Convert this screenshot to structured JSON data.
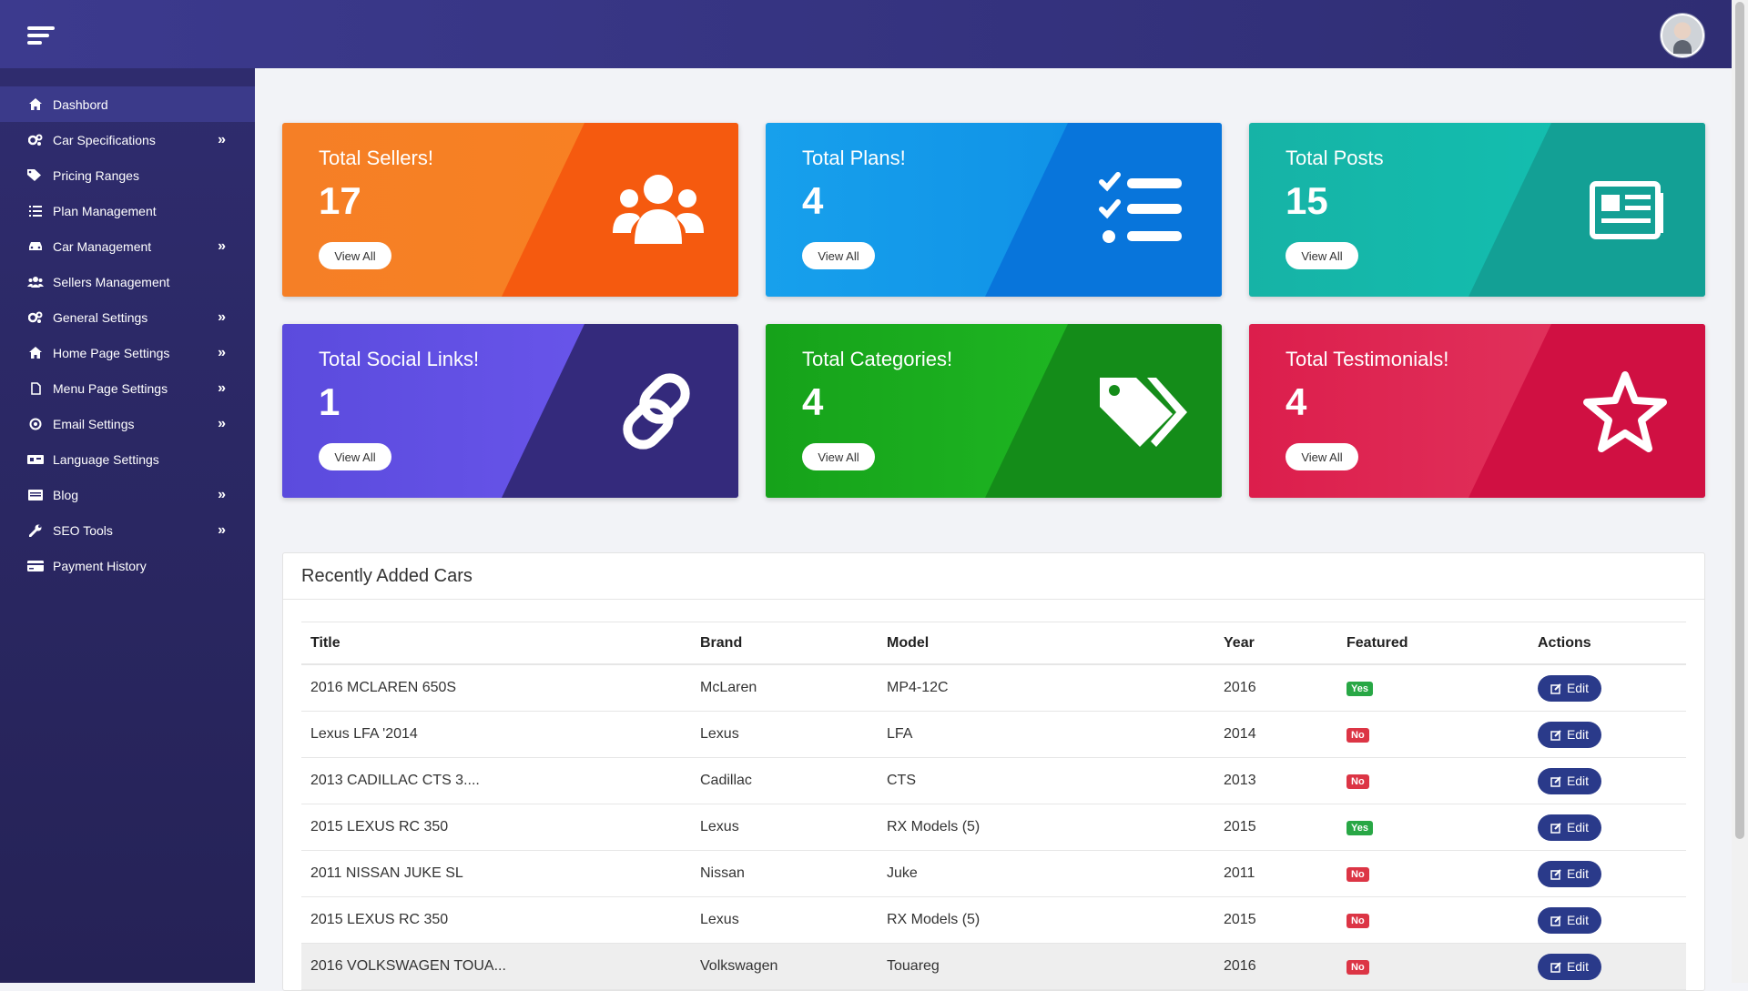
{
  "sidebar": {
    "items": [
      {
        "label": "Dashbord",
        "icon": "home-icon",
        "chevron": false
      },
      {
        "label": "Car Specifications",
        "icon": "cogs-icon",
        "chevron": true
      },
      {
        "label": "Pricing Ranges",
        "icon": "tags-icon",
        "chevron": false
      },
      {
        "label": "Plan Management",
        "icon": "list-icon",
        "chevron": false
      },
      {
        "label": "Car Management",
        "icon": "car-icon",
        "chevron": true
      },
      {
        "label": "Sellers Management",
        "icon": "users-icon",
        "chevron": false
      },
      {
        "label": "General Settings",
        "icon": "cogs-icon",
        "chevron": true
      },
      {
        "label": "Home Page Settings",
        "icon": "home-icon",
        "chevron": true
      },
      {
        "label": "Menu Page Settings",
        "icon": "file-icon",
        "chevron": true
      },
      {
        "label": "Email Settings",
        "icon": "at-icon",
        "chevron": true
      },
      {
        "label": "Language Settings",
        "icon": "language-icon",
        "chevron": false
      },
      {
        "label": "Blog",
        "icon": "newspaper-icon",
        "chevron": true
      },
      {
        "label": "SEO Tools",
        "icon": "wrench-icon",
        "chevron": true
      },
      {
        "label": "Payment History",
        "icon": "credit-card-icon",
        "chevron": false
      }
    ]
  },
  "cards": [
    {
      "title": "Total Sellers!",
      "value": "17",
      "button": "View All",
      "icon": "users-icon"
    },
    {
      "title": "Total Plans!",
      "value": "4",
      "button": "View All",
      "icon": "list-check-icon"
    },
    {
      "title": "Total Posts",
      "value": "15",
      "button": "View All",
      "icon": "newspaper-icon"
    },
    {
      "title": "Total Social Links!",
      "value": "1",
      "button": "View All",
      "icon": "link-icon"
    },
    {
      "title": "Total Categories!",
      "value": "4",
      "button": "View All",
      "icon": "tags-icon"
    },
    {
      "title": "Total Testimonials!",
      "value": "4",
      "button": "View All",
      "icon": "star-icon"
    }
  ],
  "recent": {
    "heading": "Recently Added Cars",
    "columns": [
      "Title",
      "Brand",
      "Model",
      "Year",
      "Featured",
      "Actions"
    ],
    "rows": [
      {
        "title": "2016 MCLAREN 650S",
        "brand": "McLaren",
        "model": "MP4-12C",
        "year": "2016",
        "featured": "Yes"
      },
      {
        "title": "Lexus LFA '2014",
        "brand": "Lexus",
        "model": "LFA",
        "year": "2014",
        "featured": "No"
      },
      {
        "title": "2013 CADILLAC CTS 3....",
        "brand": "Cadillac",
        "model": "CTS",
        "year": "2013",
        "featured": "No"
      },
      {
        "title": "2015 LEXUS RC 350",
        "brand": "Lexus",
        "model": "RX Models (5)",
        "year": "2015",
        "featured": "Yes"
      },
      {
        "title": "2011 NISSAN JUKE SL",
        "brand": "Nissan",
        "model": "Juke",
        "year": "2011",
        "featured": "No"
      },
      {
        "title": "2015 LEXUS RC 350",
        "brand": "Lexus",
        "model": "RX Models (5)",
        "year": "2015",
        "featured": "No"
      },
      {
        "title": "2016 VOLKSWAGEN TOUA...",
        "brand": "Volkswagen",
        "model": "Touareg",
        "year": "2016",
        "featured": "No"
      }
    ],
    "edit_label": "Edit"
  },
  "colors": {
    "sidebar": "#2f2c6e",
    "topbar": "#3c3a8e",
    "edit_button": "#2a3a8a",
    "badge_yes": "#28a745",
    "badge_no": "#dc3545"
  }
}
